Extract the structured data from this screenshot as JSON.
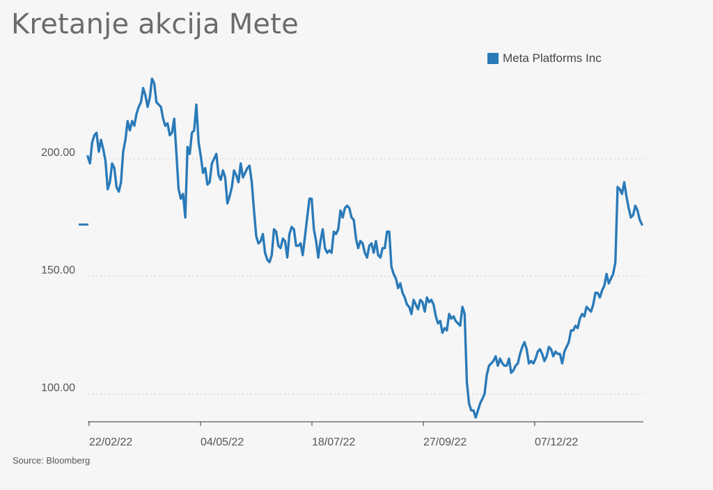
{
  "chart_data": {
    "type": "line",
    "title": "Kretanje akcija Mete",
    "source": "Source: Bloomberg",
    "series": [
      {
        "name": "Meta Platforms Inc",
        "color": "#2a7ab8",
        "values": [
          201,
          198,
          207,
          210,
          211,
          203,
          208,
          204,
          199,
          187,
          190,
          198,
          196,
          188,
          186,
          190,
          203,
          208,
          216,
          212,
          216,
          214,
          219,
          222,
          224,
          230,
          227,
          222,
          226,
          234,
          232,
          224,
          223,
          222,
          217,
          214,
          215,
          210,
          211,
          217,
          202,
          187,
          183,
          185,
          175,
          205,
          202,
          211,
          212,
          223,
          207,
          201,
          194,
          196,
          189,
          190,
          198,
          200,
          202,
          193,
          191,
          195,
          192,
          181,
          184,
          188,
          195,
          193,
          190,
          198,
          192,
          194,
          196,
          197,
          190,
          178,
          167,
          164,
          165,
          168,
          160,
          157,
          156,
          159,
          170,
          169,
          163,
          162,
          166,
          165,
          158,
          168,
          171,
          170,
          163,
          163,
          164,
          159,
          167,
          175,
          183,
          183,
          170,
          165,
          158,
          165,
          170,
          162,
          160,
          161,
          160,
          169,
          168,
          170,
          178,
          175,
          179,
          180,
          179,
          175,
          174,
          166,
          162,
          165,
          164,
          160,
          158,
          163,
          164,
          160,
          165,
          159,
          158,
          162,
          162,
          169,
          169,
          154,
          151,
          149,
          145,
          147,
          143,
          141,
          138,
          137,
          134,
          140,
          138,
          136,
          140,
          139,
          135,
          141,
          139,
          140,
          138,
          133,
          130,
          131,
          126,
          128,
          127,
          134,
          132,
          133,
          131,
          130,
          129,
          137,
          134,
          105,
          96,
          93,
          93,
          90,
          93,
          96,
          98,
          100,
          108,
          112,
          113,
          114,
          116,
          112,
          115,
          113,
          112,
          112,
          115,
          109,
          110,
          112,
          113,
          117,
          120,
          122,
          119,
          113,
          114,
          113,
          115,
          118,
          119,
          117,
          114,
          116,
          120,
          119,
          116,
          118,
          117,
          117,
          113,
          118,
          120,
          122,
          127,
          127,
          129,
          128,
          132,
          134,
          133,
          137,
          136,
          135,
          138,
          143,
          143,
          141,
          144,
          146,
          151,
          147,
          149,
          151,
          156,
          188,
          187,
          185,
          190,
          184,
          179,
          175,
          176,
          180,
          178,
          174,
          172
        ]
      }
    ],
    "x_labels": [
      "22/02/22",
      "04/05/22",
      "18/07/22",
      "27/09/22",
      "07/12/22"
    ],
    "y_ticks": [
      "100.00",
      "150.00",
      "200.00"
    ],
    "ylim": [
      89,
      238
    ],
    "last_value_marker": 172,
    "grid": "horizontal-dotted",
    "legend_position": "top-right"
  }
}
